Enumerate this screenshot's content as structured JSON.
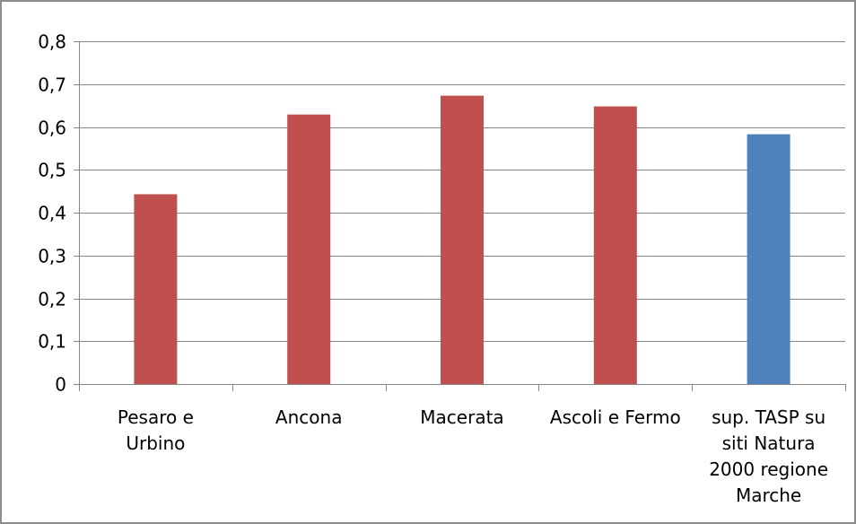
{
  "chart_data": {
    "type": "bar",
    "title": "",
    "xlabel": "",
    "ylabel": "",
    "categories": [
      "Pesaro e Urbino",
      "Ancona",
      "Macerata",
      "Ascoli e Fermo",
      "sup. TASP su siti Natura 2000 regione Marche"
    ],
    "category_label_lines": [
      [
        "Pesaro e",
        "Urbino"
      ],
      [
        "Ancona"
      ],
      [
        "Macerata"
      ],
      [
        "Ascoli e Fermo"
      ],
      [
        "sup. TASP su",
        "siti Natura",
        "2000 regione",
        "Marche"
      ]
    ],
    "values": [
      0.443,
      0.629,
      0.673,
      0.648,
      0.583
    ],
    "bar_colors": [
      "#C0504D",
      "#C0504D",
      "#C0504D",
      "#C0504D",
      "#4F81BD"
    ],
    "ylim": [
      0,
      0.8
    ],
    "yticks": [
      0,
      0.1,
      0.2,
      0.3,
      0.4,
      0.5,
      0.6,
      0.7,
      0.8
    ],
    "ytick_labels": [
      "0",
      "0,1",
      "0,2",
      "0,3",
      "0,4",
      "0,5",
      "0,6",
      "0,7",
      "0,8"
    ],
    "grid": true,
    "legend": "none"
  },
  "colors": {
    "gridline": "#868686",
    "axis": "#868686",
    "border": "#8c8c8c"
  }
}
